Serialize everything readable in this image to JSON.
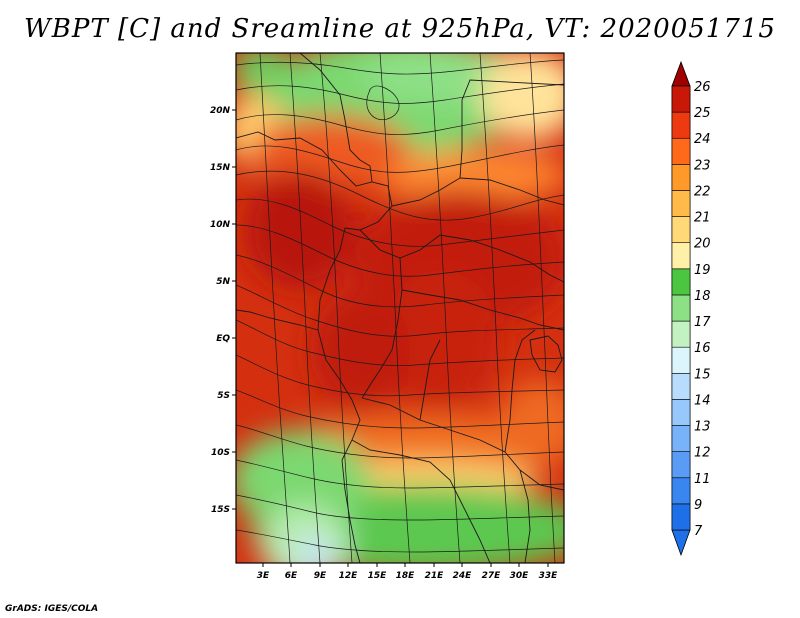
{
  "title": "WBPT [C] and Sreamline at 925hPa, VT: 2020051715",
  "credit": "GrADS: IGES/COLA",
  "map": {
    "lat_labels": [
      "20N",
      "15N",
      "10N",
      "5N",
      "EQ",
      "5S",
      "10S",
      "15S"
    ],
    "lat_values": [
      20,
      15,
      10,
      5,
      0,
      -5,
      -10,
      -15
    ],
    "lon_labels": [
      "3E",
      "6E",
      "9E",
      "12E",
      "15E",
      "18E",
      "21E",
      "24E",
      "27E",
      "30E",
      "33E"
    ],
    "lon_values": [
      3,
      6,
      9,
      12,
      15,
      18,
      21,
      24,
      27,
      30,
      33
    ],
    "lon_range": [
      0.5,
      35
    ],
    "lat_range": [
      -19.5,
      25
    ]
  },
  "colorbar": {
    "labels": [
      "7",
      "9",
      "11",
      "12",
      "13",
      "14",
      "15",
      "16",
      "17",
      "18",
      "19",
      "20",
      "21",
      "22",
      "23",
      "24",
      "25",
      "26"
    ],
    "colors": [
      "#1e6fe8",
      "#3a86f0",
      "#5a9cf5",
      "#78b2f8",
      "#98c8fb",
      "#b8dcfc",
      "#dcf4fc",
      "#c2f2c0",
      "#8ee086",
      "#4cc540",
      "#fff0a8",
      "#ffd878",
      "#ffba4a",
      "#ff9a2a",
      "#ff6a1a",
      "#ee3a10",
      "#c81808",
      "#a00000"
    ]
  }
}
